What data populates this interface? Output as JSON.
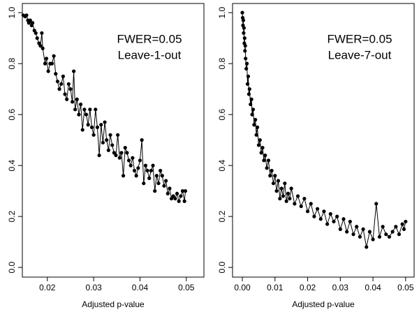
{
  "chart_data": [
    {
      "type": "line",
      "xlabel": "Adjusted p-value",
      "annotations": [
        "FWER=0.05",
        "Leave-1-out"
      ],
      "color": "#000000",
      "xlim": [
        0.0146,
        0.0538
      ],
      "ylim": [
        -0.038,
        1.036
      ],
      "xticks": [
        0.02,
        0.03,
        0.04,
        0.05
      ],
      "yticks": [
        {
          "value": 0,
          "label": "0.0"
        },
        0.2,
        0.4,
        0.6,
        0.8,
        {
          "value": 1,
          "label": "1.0"
        }
      ],
      "x": [
        0.0148,
        0.0152,
        0.0155,
        0.0158,
        0.016,
        0.0163,
        0.0166,
        0.0168,
        0.0172,
        0.0175,
        0.0178,
        0.0182,
        0.0185,
        0.0188,
        0.019,
        0.0195,
        0.0198,
        0.0202,
        0.0206,
        0.021,
        0.0214,
        0.0218,
        0.0222,
        0.0226,
        0.023,
        0.0234,
        0.0238,
        0.0242,
        0.0246,
        0.025,
        0.0254,
        0.0257,
        0.026,
        0.0264,
        0.0268,
        0.0272,
        0.0276,
        0.028,
        0.0284,
        0.0288,
        0.0292,
        0.0296,
        0.03,
        0.0304,
        0.0308,
        0.0312,
        0.0316,
        0.032,
        0.0324,
        0.0328,
        0.0332,
        0.0336,
        0.034,
        0.0344,
        0.0348,
        0.0352,
        0.0356,
        0.036,
        0.0364,
        0.0368,
        0.0372,
        0.0376,
        0.038,
        0.0384,
        0.0388,
        0.0392,
        0.0396,
        0.04,
        0.0404,
        0.0408,
        0.0412,
        0.0416,
        0.042,
        0.0424,
        0.0428,
        0.0432,
        0.0436,
        0.044,
        0.0444,
        0.0448,
        0.0452,
        0.0456,
        0.046,
        0.0464,
        0.0468,
        0.0472,
        0.0476,
        0.048,
        0.0484,
        0.0488,
        0.0492,
        0.0496,
        0.0498
      ],
      "values": [
        0.99,
        0.985,
        0.99,
        0.97,
        0.96,
        0.97,
        0.95,
        0.96,
        0.93,
        0.92,
        0.9,
        0.88,
        0.87,
        0.92,
        0.86,
        0.8,
        0.82,
        0.77,
        0.8,
        0.8,
        0.83,
        0.76,
        0.73,
        0.7,
        0.72,
        0.75,
        0.68,
        0.66,
        0.72,
        0.7,
        0.65,
        0.77,
        0.62,
        0.66,
        0.6,
        0.64,
        0.54,
        0.62,
        0.6,
        0.56,
        0.62,
        0.55,
        0.52,
        0.62,
        0.55,
        0.44,
        0.56,
        0.49,
        0.57,
        0.5,
        0.46,
        0.52,
        0.48,
        0.45,
        0.44,
        0.52,
        0.43,
        0.45,
        0.36,
        0.47,
        0.45,
        0.42,
        0.4,
        0.43,
        0.38,
        0.36,
        0.39,
        0.42,
        0.5,
        0.33,
        0.4,
        0.38,
        0.35,
        0.38,
        0.4,
        0.3,
        0.36,
        0.33,
        0.38,
        0.36,
        0.32,
        0.34,
        0.29,
        0.31,
        0.27,
        0.28,
        0.27,
        0.29,
        0.26,
        0.28,
        0.3,
        0.26,
        0.3
      ]
    },
    {
      "type": "line",
      "xlabel": "Adjusted p-value",
      "annotations": [
        "FWER=0.05",
        "Leave-7-out"
      ],
      "color": "#000000",
      "xlim": [
        -0.003,
        0.0526
      ],
      "ylim": [
        -0.038,
        1.036
      ],
      "xticks": [
        {
          "value": 0,
          "label": "0.00"
        },
        0.01,
        0.02,
        0.03,
        0.04,
        0.05
      ],
      "yticks": [
        {
          "value": 0,
          "label": "0.0"
        },
        0.2,
        0.4,
        0.6,
        0.8,
        {
          "value": 1,
          "label": "1.0"
        }
      ],
      "x": [
        0,
        0.0001,
        0.0002,
        0.0003,
        0.0004,
        0.0005,
        0.0006,
        0.0007,
        0.0008,
        0.0009,
        0.001,
        0.0012,
        0.0014,
        0.0016,
        0.0018,
        0.002,
        0.0022,
        0.0025,
        0.0028,
        0.003,
        0.0033,
        0.0036,
        0.004,
        0.0043,
        0.0046,
        0.005,
        0.0054,
        0.0058,
        0.0062,
        0.0066,
        0.007,
        0.0075,
        0.008,
        0.0085,
        0.009,
        0.0095,
        0.01,
        0.0105,
        0.011,
        0.0115,
        0.012,
        0.0125,
        0.013,
        0.0135,
        0.014,
        0.0145,
        0.015,
        0.016,
        0.017,
        0.018,
        0.019,
        0.02,
        0.021,
        0.022,
        0.023,
        0.024,
        0.025,
        0.026,
        0.027,
        0.028,
        0.029,
        0.03,
        0.031,
        0.032,
        0.033,
        0.034,
        0.035,
        0.036,
        0.037,
        0.038,
        0.039,
        0.04,
        0.041,
        0.042,
        0.043,
        0.044,
        0.045,
        0.046,
        0.047,
        0.048,
        0.049,
        0.0495,
        0.05
      ],
      "values": [
        1,
        0.98,
        0.95,
        0.97,
        0.92,
        0.94,
        0.88,
        0.9,
        0.85,
        0.87,
        0.82,
        0.78,
        0.8,
        0.72,
        0.75,
        0.68,
        0.7,
        0.64,
        0.66,
        0.6,
        0.62,
        0.56,
        0.58,
        0.52,
        0.55,
        0.48,
        0.5,
        0.45,
        0.47,
        0.42,
        0.44,
        0.39,
        0.42,
        0.36,
        0.38,
        0.33,
        0.36,
        0.3,
        0.34,
        0.27,
        0.31,
        0.28,
        0.33,
        0.26,
        0.29,
        0.27,
        0.31,
        0.25,
        0.28,
        0.24,
        0.27,
        0.22,
        0.25,
        0.2,
        0.23,
        0.19,
        0.22,
        0.17,
        0.21,
        0.18,
        0.2,
        0.15,
        0.19,
        0.14,
        0.18,
        0.13,
        0.16,
        0.12,
        0.15,
        0.08,
        0.14,
        0.11,
        0.25,
        0.12,
        0.16,
        0.13,
        0.12,
        0.14,
        0.16,
        0.13,
        0.17,
        0.15,
        0.18
      ]
    }
  ]
}
